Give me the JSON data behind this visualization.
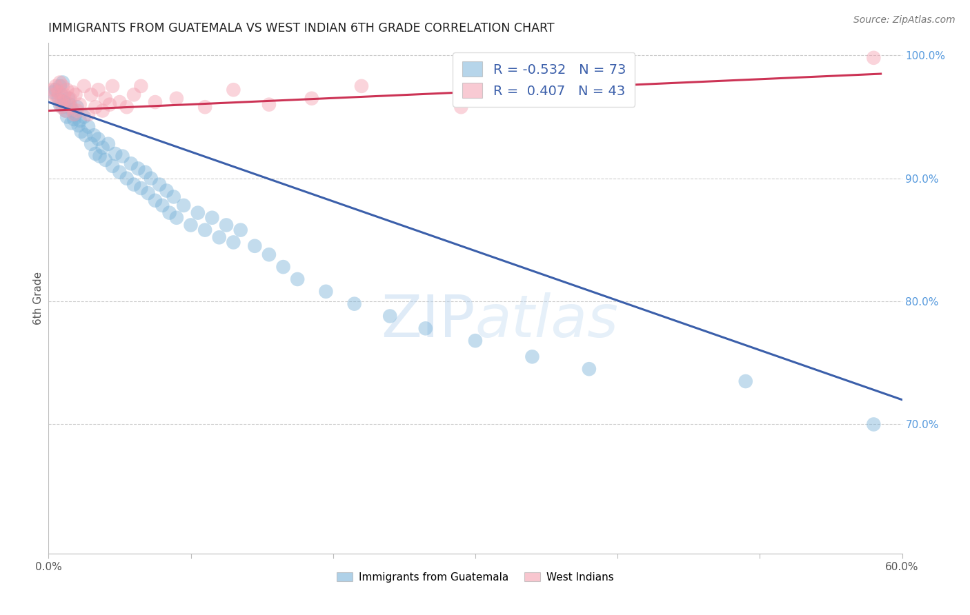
{
  "title": "IMMIGRANTS FROM GUATEMALA VS WEST INDIAN 6TH GRADE CORRELATION CHART",
  "source": "Source: ZipAtlas.com",
  "ylabel": "6th Grade",
  "xlim": [
    0.0,
    0.6
  ],
  "ylim": [
    0.595,
    1.01
  ],
  "grid_color": "#cccccc",
  "background_color": "#ffffff",
  "blue_color": "#7ab3d9",
  "pink_color": "#f4a0b0",
  "blue_line_color": "#3b5faa",
  "pink_line_color": "#cc3355",
  "legend_R_blue": "-0.532",
  "legend_N_blue": "73",
  "legend_R_pink": "0.407",
  "legend_N_pink": "43",
  "blue_line_x": [
    0.0,
    0.6
  ],
  "blue_line_y": [
    0.962,
    0.72
  ],
  "pink_line_x": [
    0.0,
    0.585
  ],
  "pink_line_y": [
    0.955,
    0.985
  ],
  "blue_scatter_x": [
    0.003,
    0.005,
    0.007,
    0.008,
    0.008,
    0.009,
    0.01,
    0.01,
    0.011,
    0.012,
    0.013,
    0.014,
    0.015,
    0.016,
    0.017,
    0.018,
    0.019,
    0.02,
    0.021,
    0.022,
    0.023,
    0.025,
    0.026,
    0.028,
    0.03,
    0.032,
    0.033,
    0.035,
    0.036,
    0.038,
    0.04,
    0.042,
    0.045,
    0.047,
    0.05,
    0.052,
    0.055,
    0.058,
    0.06,
    0.063,
    0.065,
    0.068,
    0.07,
    0.072,
    0.075,
    0.078,
    0.08,
    0.083,
    0.085,
    0.088,
    0.09,
    0.095,
    0.1,
    0.105,
    0.11,
    0.115,
    0.12,
    0.125,
    0.13,
    0.135,
    0.145,
    0.155,
    0.165,
    0.175,
    0.195,
    0.215,
    0.24,
    0.265,
    0.3,
    0.34,
    0.38,
    0.49,
    0.58
  ],
  "blue_scatter_y": [
    0.97,
    0.972,
    0.965,
    0.96,
    0.975,
    0.968,
    0.978,
    0.958,
    0.962,
    0.955,
    0.95,
    0.965,
    0.96,
    0.945,
    0.955,
    0.948,
    0.952,
    0.958,
    0.943,
    0.947,
    0.938,
    0.95,
    0.935,
    0.942,
    0.928,
    0.935,
    0.92,
    0.932,
    0.918,
    0.925,
    0.915,
    0.928,
    0.91,
    0.92,
    0.905,
    0.918,
    0.9,
    0.912,
    0.895,
    0.908,
    0.892,
    0.905,
    0.888,
    0.9,
    0.882,
    0.895,
    0.878,
    0.89,
    0.872,
    0.885,
    0.868,
    0.878,
    0.862,
    0.872,
    0.858,
    0.868,
    0.852,
    0.862,
    0.848,
    0.858,
    0.845,
    0.838,
    0.828,
    0.818,
    0.808,
    0.798,
    0.788,
    0.778,
    0.768,
    0.755,
    0.745,
    0.735,
    0.7
  ],
  "pink_scatter_x": [
    0.003,
    0.004,
    0.005,
    0.006,
    0.007,
    0.008,
    0.008,
    0.009,
    0.01,
    0.01,
    0.011,
    0.012,
    0.013,
    0.014,
    0.015,
    0.016,
    0.017,
    0.018,
    0.019,
    0.02,
    0.022,
    0.025,
    0.028,
    0.03,
    0.033,
    0.035,
    0.038,
    0.04,
    0.043,
    0.045,
    0.05,
    0.055,
    0.06,
    0.065,
    0.075,
    0.09,
    0.11,
    0.13,
    0.155,
    0.185,
    0.22,
    0.29,
    0.58
  ],
  "pink_scatter_y": [
    0.972,
    0.968,
    0.975,
    0.965,
    0.97,
    0.963,
    0.978,
    0.958,
    0.975,
    0.962,
    0.968,
    0.955,
    0.972,
    0.96,
    0.965,
    0.958,
    0.97,
    0.952,
    0.968,
    0.955,
    0.96,
    0.975,
    0.952,
    0.968,
    0.958,
    0.972,
    0.955,
    0.965,
    0.96,
    0.975,
    0.962,
    0.958,
    0.968,
    0.975,
    0.962,
    0.965,
    0.958,
    0.972,
    0.96,
    0.965,
    0.975,
    0.958,
    0.998
  ]
}
